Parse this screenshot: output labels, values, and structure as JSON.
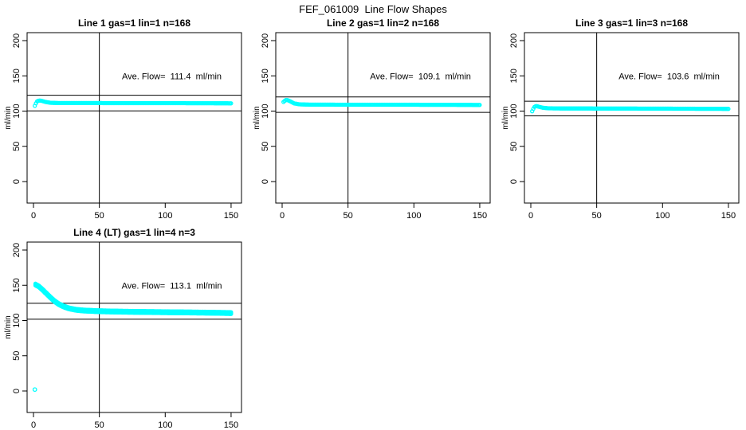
{
  "figure": {
    "title": "FEF_061009  Line Flow Shapes",
    "background_color": "#FFFFFF",
    "axis_color": "#000000",
    "marker_color": "#00FFFF"
  },
  "chart_data": [
    {
      "type": "scatter",
      "title": "Line 1 gas=1 lin=1 n=168",
      "xlabel": "",
      "ylabel": "ml/min",
      "xlim": [
        0,
        150
      ],
      "ylim": [
        0,
        200
      ],
      "xticks": [
        0,
        50,
        100,
        150
      ],
      "yticks": [
        0,
        50,
        100,
        150,
        200
      ],
      "ave_flow_ml_min": 111.4,
      "annotation": "Ave. Flow=  111.4  ml/min",
      "marker": "open-circle",
      "vline_x": 50,
      "hlines_y": [
        122.5,
        100.3
      ],
      "n_points": 168,
      "overlap_runs": 1,
      "profile_keypoints": [
        [
          1,
          107.5
        ],
        [
          2.5,
          113.5
        ],
        [
          4,
          115
        ],
        [
          6,
          114.8
        ],
        [
          9,
          113
        ],
        [
          13,
          111.8
        ],
        [
          20,
          111.4
        ],
        [
          40,
          111.4
        ],
        [
          70,
          111.3
        ],
        [
          100,
          111.3
        ],
        [
          130,
          111.2
        ],
        [
          150,
          111.0
        ]
      ],
      "outlier_points": []
    },
    {
      "type": "scatter",
      "title": "Line 2 gas=1 lin=2 n=168",
      "xlabel": "",
      "ylabel": "ml/min",
      "xlim": [
        0,
        150
      ],
      "ylim": [
        0,
        200
      ],
      "xticks": [
        0,
        50,
        100,
        150
      ],
      "yticks": [
        0,
        50,
        100,
        150,
        200
      ],
      "ave_flow_ml_min": 109.1,
      "annotation": "Ave. Flow=  109.1  ml/min",
      "marker": "open-circle",
      "vline_x": 50,
      "hlines_y": [
        120.0,
        98.2
      ],
      "n_points": 168,
      "overlap_runs": 1,
      "profile_keypoints": [
        [
          1,
          113
        ],
        [
          2.5,
          115.5
        ],
        [
          4,
          115.8
        ],
        [
          6,
          114
        ],
        [
          9,
          111
        ],
        [
          13,
          109.6
        ],
        [
          20,
          109.2
        ],
        [
          40,
          109.1
        ],
        [
          70,
          109.0
        ],
        [
          100,
          109.0
        ],
        [
          130,
          108.9
        ],
        [
          150,
          108.7
        ]
      ],
      "outlier_points": []
    },
    {
      "type": "scatter",
      "title": "Line 3 gas=1 lin=3 n=168",
      "xlabel": "",
      "ylabel": "ml/min",
      "xlim": [
        0,
        150
      ],
      "ylim": [
        0,
        200
      ],
      "xticks": [
        0,
        50,
        100,
        150
      ],
      "yticks": [
        0,
        50,
        100,
        150,
        200
      ],
      "ave_flow_ml_min": 103.6,
      "annotation": "Ave. Flow=  103.6  ml/min",
      "marker": "open-circle",
      "vline_x": 50,
      "hlines_y": [
        114.0,
        93.2
      ],
      "n_points": 168,
      "overlap_runs": 1,
      "profile_keypoints": [
        [
          1,
          99.8
        ],
        [
          2.5,
          105.5
        ],
        [
          4,
          107.3
        ],
        [
          6,
          106.3
        ],
        [
          9,
          104.8
        ],
        [
          13,
          104.0
        ],
        [
          20,
          103.8
        ],
        [
          40,
          103.7
        ],
        [
          70,
          103.6
        ],
        [
          100,
          103.5
        ],
        [
          130,
          103.3
        ],
        [
          150,
          103.2
        ]
      ],
      "outlier_points": []
    },
    {
      "type": "scatter",
      "title": "Line 4 (LT) gas=1 lin=4 n=3",
      "xlabel": "",
      "ylabel": "ml/min",
      "xlim": [
        0,
        150
      ],
      "ylim": [
        0,
        200
      ],
      "xticks": [
        0,
        50,
        100,
        150
      ],
      "yticks": [
        0,
        50,
        100,
        150,
        200
      ],
      "ave_flow_ml_min": 113.1,
      "annotation": "Ave. Flow=  113.1  ml/min",
      "marker": "open-circle",
      "vline_x": 50,
      "hlines_y": [
        124.4,
        101.8
      ],
      "n_points": 168,
      "overlap_runs": 3,
      "profile_keypoints": [
        [
          1.5,
          151
        ],
        [
          4,
          148.5
        ],
        [
          7,
          143.5
        ],
        [
          10,
          138
        ],
        [
          13,
          132.5
        ],
        [
          16,
          127.5
        ],
        [
          19,
          123.5
        ],
        [
          23,
          119.8
        ],
        [
          27,
          117.2
        ],
        [
          32,
          115.3
        ],
        [
          38,
          114.2
        ],
        [
          50,
          113.2
        ],
        [
          65,
          112.6
        ],
        [
          85,
          112.1
        ],
        [
          110,
          111.6
        ],
        [
          130,
          111.2
        ],
        [
          150,
          110.6
        ]
      ],
      "outlier_points": [
        [
          1,
          2
        ]
      ]
    }
  ]
}
